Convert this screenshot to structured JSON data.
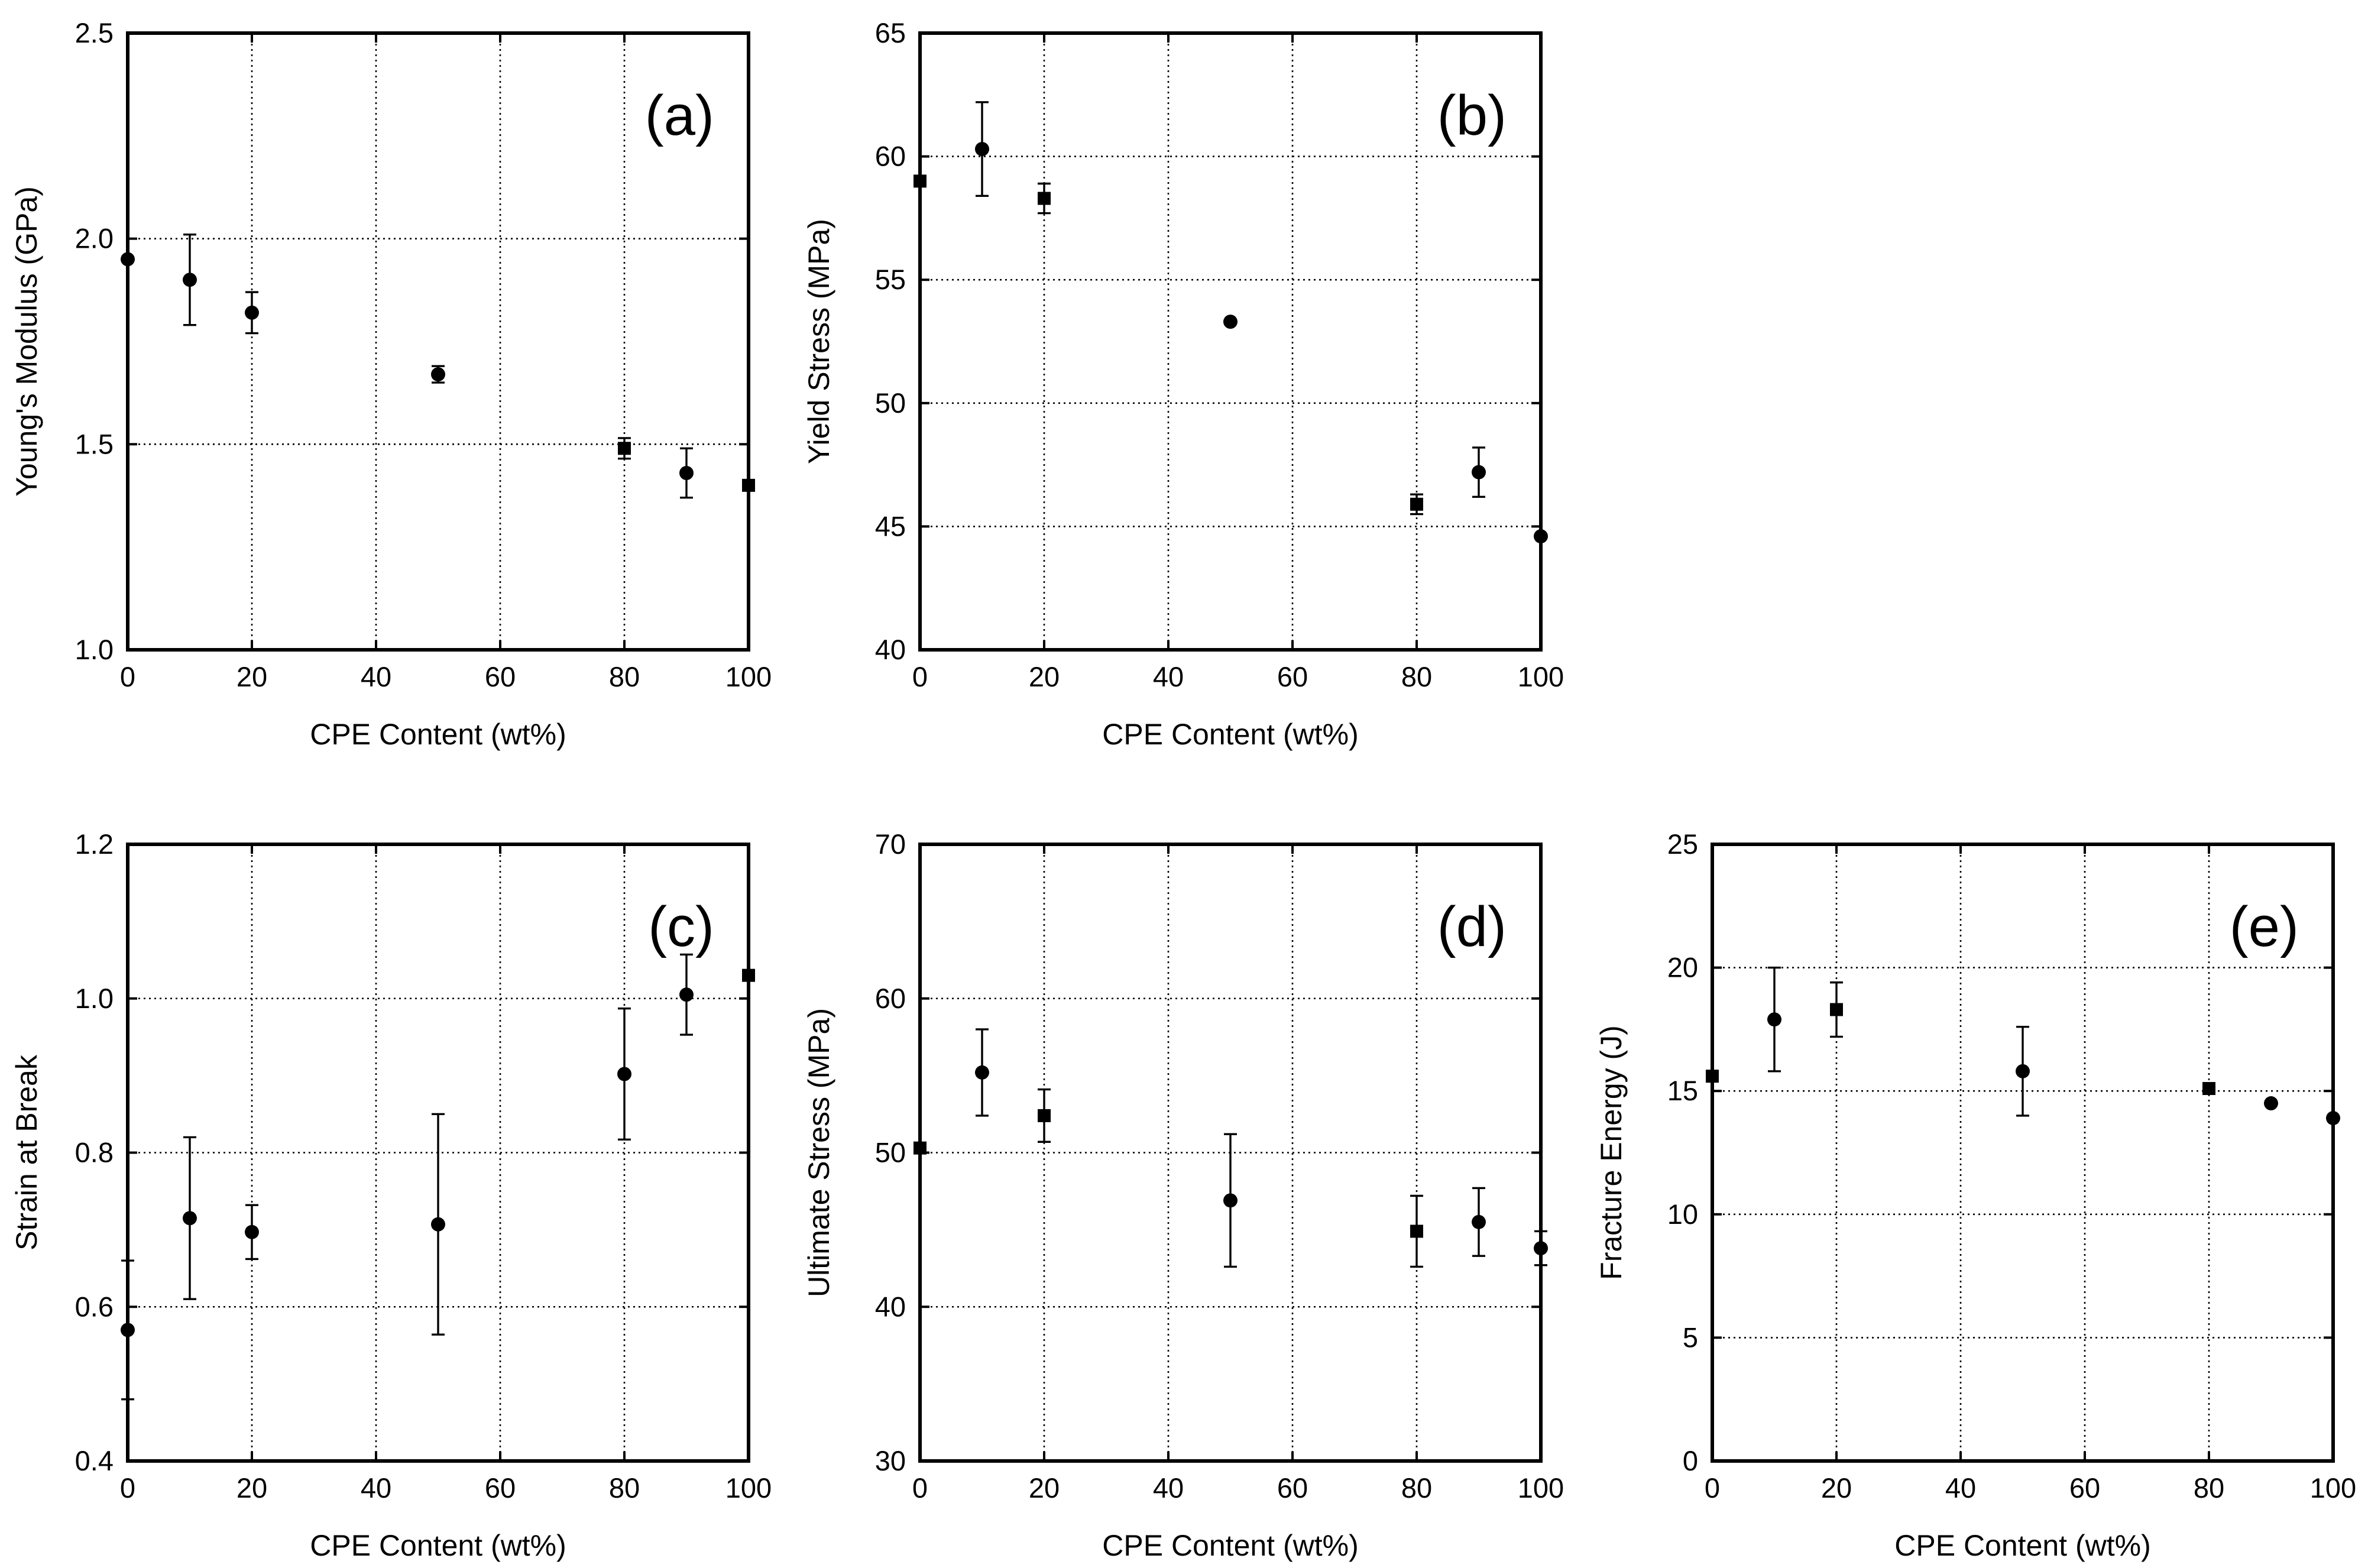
{
  "chart_data": [
    {
      "id": "a",
      "type": "scatter",
      "panel_label": "(a)",
      "xlabel": "CPE Content (wt%)",
      "ylabel": "Young's Modulus (GPa)",
      "xlim": [
        0,
        100
      ],
      "ylim": [
        1.0,
        2.5
      ],
      "xticks": [
        0,
        20,
        40,
        60,
        80,
        100
      ],
      "yticks": [
        1.0,
        1.5,
        2.0,
        2.5
      ],
      "ytick_labels": [
        "1.0",
        "1.5",
        "2.0",
        "2.5"
      ],
      "grid": true,
      "points": [
        {
          "x": 0,
          "y": 1.95,
          "err": 0.0,
          "marker": "circle"
        },
        {
          "x": 10,
          "y": 1.9,
          "err": 0.11,
          "marker": "circle"
        },
        {
          "x": 20,
          "y": 1.82,
          "err": 0.05,
          "marker": "circle"
        },
        {
          "x": 50,
          "y": 1.67,
          "err": 0.02,
          "marker": "circle"
        },
        {
          "x": 80,
          "y": 1.49,
          "err": 0.025,
          "marker": "square"
        },
        {
          "x": 90,
          "y": 1.43,
          "err": 0.06,
          "marker": "circle"
        },
        {
          "x": 100,
          "y": 1.4,
          "err": 0.0,
          "marker": "square"
        }
      ]
    },
    {
      "id": "b",
      "type": "scatter",
      "panel_label": "(b)",
      "xlabel": "CPE Content (wt%)",
      "ylabel": "Yield Stress (MPa)",
      "xlim": [
        0,
        100
      ],
      "ylim": [
        40,
        65
      ],
      "xticks": [
        0,
        20,
        40,
        60,
        80,
        100
      ],
      "yticks": [
        40,
        45,
        50,
        55,
        60,
        65
      ],
      "ytick_labels": [
        "40",
        "45",
        "50",
        "55",
        "60",
        "65"
      ],
      "grid": true,
      "points": [
        {
          "x": 0,
          "y": 59.0,
          "err": 0.0,
          "marker": "square"
        },
        {
          "x": 10,
          "y": 60.3,
          "err": 1.9,
          "marker": "circle"
        },
        {
          "x": 20,
          "y": 58.3,
          "err": 0.6,
          "marker": "square"
        },
        {
          "x": 50,
          "y": 53.3,
          "err": 0.0,
          "marker": "circle"
        },
        {
          "x": 80,
          "y": 45.9,
          "err": 0.4,
          "marker": "square"
        },
        {
          "x": 90,
          "y": 47.2,
          "err": 1.0,
          "marker": "circle"
        },
        {
          "x": 100,
          "y": 44.6,
          "err": 0.0,
          "marker": "circle"
        }
      ]
    },
    {
      "id": "c",
      "type": "scatter",
      "panel_label": "(c)",
      "xlabel": "CPE Content (wt%)",
      "ylabel": "Strain at Break",
      "xlim": [
        0,
        100
      ],
      "ylim": [
        0.4,
        1.2
      ],
      "xticks": [
        0,
        20,
        40,
        60,
        80,
        100
      ],
      "yticks": [
        0.4,
        0.6,
        0.8,
        1.0,
        1.2
      ],
      "ytick_labels": [
        "0.4",
        "0.6",
        "0.8",
        "1.0",
        "1.2"
      ],
      "grid": true,
      "points": [
        {
          "x": 0,
          "y": 0.57,
          "err": 0.09,
          "marker": "circle"
        },
        {
          "x": 10,
          "y": 0.715,
          "err": 0.105,
          "marker": "circle"
        },
        {
          "x": 20,
          "y": 0.697,
          "err": 0.035,
          "marker": "circle"
        },
        {
          "x": 50,
          "y": 0.707,
          "err": 0.143,
          "marker": "circle"
        },
        {
          "x": 80,
          "y": 0.902,
          "err": 0.085,
          "marker": "circle"
        },
        {
          "x": 90,
          "y": 1.005,
          "err": 0.052,
          "marker": "circle"
        },
        {
          "x": 100,
          "y": 1.03,
          "err": 0.0,
          "marker": "square"
        }
      ]
    },
    {
      "id": "d",
      "type": "scatter",
      "panel_label": "(d)",
      "xlabel": "CPE Content (wt%)",
      "ylabel": "Ultimate Stress (MPa)",
      "xlim": [
        0,
        100
      ],
      "ylim": [
        30,
        70
      ],
      "xticks": [
        0,
        20,
        40,
        60,
        80,
        100
      ],
      "yticks": [
        30,
        40,
        50,
        60,
        70
      ],
      "ytick_labels": [
        "30",
        "40",
        "50",
        "60",
        "70"
      ],
      "grid": true,
      "points": [
        {
          "x": 0,
          "y": 50.3,
          "err": 0.0,
          "marker": "square"
        },
        {
          "x": 10,
          "y": 55.2,
          "err": 2.8,
          "marker": "circle"
        },
        {
          "x": 20,
          "y": 52.4,
          "err": 1.7,
          "marker": "square"
        },
        {
          "x": 50,
          "y": 46.9,
          "err": 4.3,
          "marker": "circle"
        },
        {
          "x": 80,
          "y": 44.9,
          "err": 2.3,
          "marker": "square"
        },
        {
          "x": 90,
          "y": 45.5,
          "err": 2.2,
          "marker": "circle"
        },
        {
          "x": 100,
          "y": 43.8,
          "err": 1.1,
          "marker": "circle"
        }
      ]
    },
    {
      "id": "e",
      "type": "scatter",
      "panel_label": "(e)",
      "xlabel": "CPE Content (wt%)",
      "ylabel": "Fracture Energy (J)",
      "xlim": [
        0,
        100
      ],
      "ylim": [
        0,
        25
      ],
      "xticks": [
        0,
        20,
        40,
        60,
        80,
        100
      ],
      "yticks": [
        0,
        5,
        10,
        15,
        20,
        25
      ],
      "ytick_labels": [
        "0",
        "5",
        "10",
        "15",
        "20",
        "25"
      ],
      "grid": true,
      "points": [
        {
          "x": 0,
          "y": 15.6,
          "err": 0.0,
          "marker": "square"
        },
        {
          "x": 10,
          "y": 17.9,
          "err": 2.1,
          "marker": "circle"
        },
        {
          "x": 20,
          "y": 18.3,
          "err": 1.1,
          "marker": "square"
        },
        {
          "x": 50,
          "y": 15.8,
          "err": 1.8,
          "marker": "circle"
        },
        {
          "x": 80,
          "y": 15.1,
          "err": 0.0,
          "marker": "square"
        },
        {
          "x": 90,
          "y": 14.5,
          "err": 0.0,
          "marker": "circle"
        },
        {
          "x": 100,
          "y": 13.9,
          "err": 0.0,
          "marker": "circle"
        }
      ]
    }
  ]
}
